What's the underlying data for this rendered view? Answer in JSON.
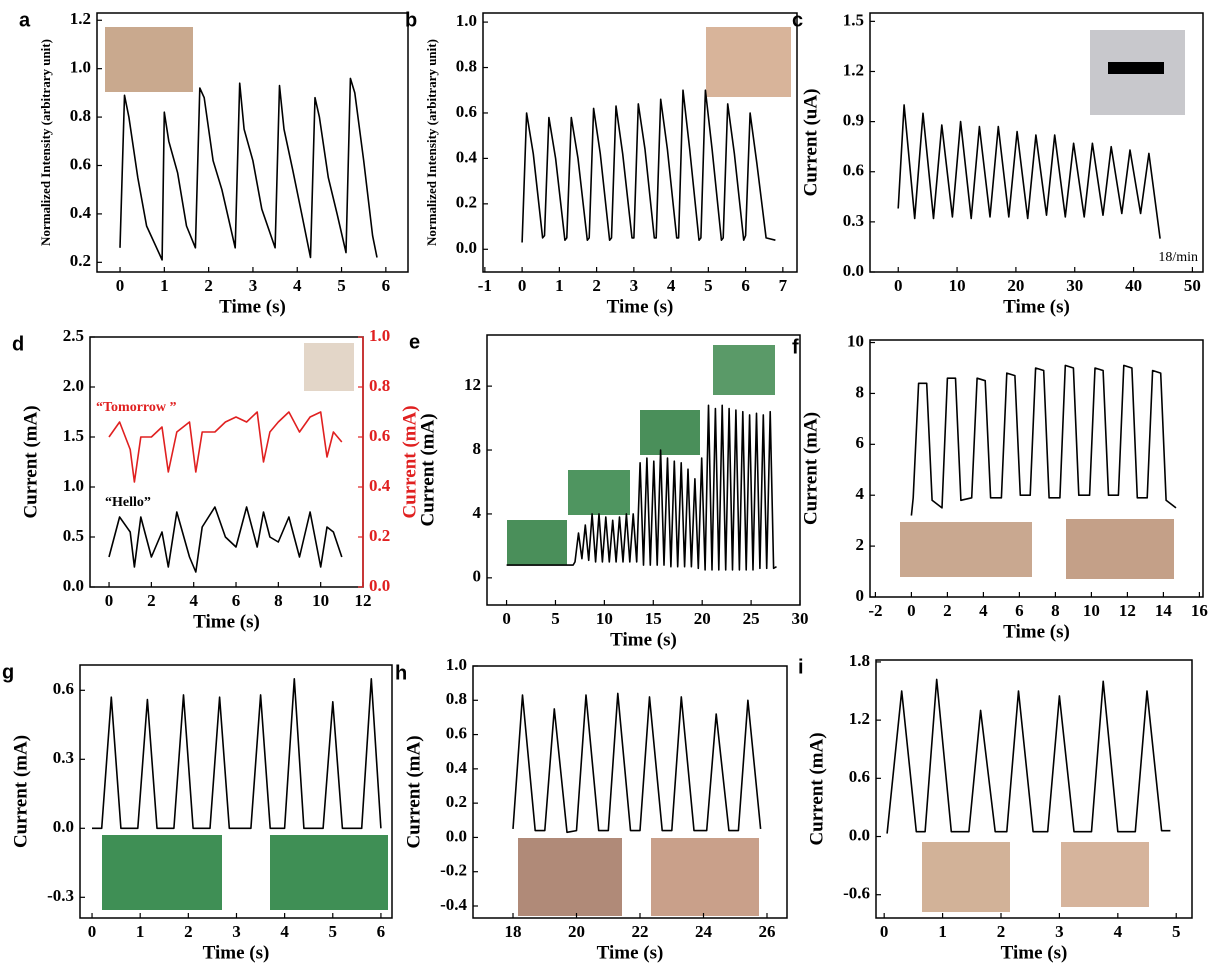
{
  "chart_data": [
    {
      "type": "line",
      "panel": "a",
      "xlabel": "Time (s)",
      "ylabel": "Normalized Intensity (arbitrary unit)",
      "xlim": [
        -0.52,
        6.5
      ],
      "ylim": [
        0.16,
        1.23
      ],
      "xticks": [
        0,
        1,
        2,
        3,
        4,
        5,
        6
      ],
      "yticks": [
        0.2,
        0.4,
        0.6,
        0.8,
        {
          "value": 1.0,
          "label": "1.0"
        },
        1.2
      ],
      "x": [
        0,
        0.1,
        0.2,
        0.4,
        0.6,
        0.8,
        0.95,
        1.0,
        1.1,
        1.3,
        1.5,
        1.7,
        1.8,
        1.9,
        2.1,
        2.3,
        2.6,
        2.7,
        2.8,
        3.0,
        3.2,
        3.5,
        3.6,
        3.7,
        3.9,
        4.1,
        4.3,
        4.4,
        4.5,
        4.7,
        4.9,
        5.1,
        5.2,
        5.3,
        5.5,
        5.7,
        5.8
      ],
      "series": [
        {
          "color": "#000000",
          "values": [
            0.26,
            0.89,
            0.8,
            0.55,
            0.35,
            0.27,
            0.21,
            0.82,
            0.7,
            0.57,
            0.35,
            0.26,
            0.92,
            0.88,
            0.62,
            0.5,
            0.26,
            0.94,
            0.75,
            0.62,
            0.42,
            0.26,
            0.93,
            0.75,
            0.58,
            0.4,
            0.22,
            0.88,
            0.8,
            0.55,
            0.4,
            0.24,
            0.96,
            0.9,
            0.62,
            0.31,
            0.22
          ]
        }
      ]
    },
    {
      "type": "line",
      "panel": "b",
      "xlabel": "Time (s)",
      "ylabel": "Normalized Intensity (arbitrary unit)",
      "xlim": [
        -1.05,
        7.38
      ],
      "ylim": [
        -0.1,
        1.04
      ],
      "xticks": [
        -1,
        0,
        1,
        2,
        3,
        4,
        5,
        6,
        7
      ],
      "yticks": [
        {
          "value": 0,
          "label": "0.0"
        },
        0.2,
        0.4,
        0.6,
        0.8,
        {
          "value": 1.0,
          "label": "1.0"
        }
      ],
      "x": [
        0,
        0.12,
        0.3,
        0.55,
        0.6,
        0.72,
        0.9,
        1.15,
        1.2,
        1.32,
        1.5,
        1.75,
        1.8,
        1.92,
        2.1,
        2.35,
        2.4,
        2.52,
        2.7,
        2.95,
        3.0,
        3.12,
        3.3,
        3.55,
        3.6,
        3.72,
        3.9,
        4.15,
        4.2,
        4.32,
        4.5,
        4.75,
        4.8,
        4.92,
        5.1,
        5.35,
        5.4,
        5.52,
        5.7,
        5.95,
        6.0,
        6.12,
        6.3,
        6.55,
        6.8
      ],
      "series": [
        {
          "color": "#000000",
          "values": [
            0.03,
            0.6,
            0.42,
            0.05,
            0.06,
            0.58,
            0.4,
            0.04,
            0.05,
            0.58,
            0.4,
            0.04,
            0.05,
            0.62,
            0.42,
            0.04,
            0.05,
            0.63,
            0.42,
            0.05,
            0.05,
            0.64,
            0.44,
            0.05,
            0.05,
            0.66,
            0.44,
            0.05,
            0.05,
            0.7,
            0.44,
            0.04,
            0.05,
            0.7,
            0.44,
            0.04,
            0.05,
            0.64,
            0.42,
            0.04,
            0.06,
            0.6,
            0.38,
            0.05,
            0.04
          ]
        }
      ]
    },
    {
      "type": "line",
      "panel": "c",
      "xlabel": "Time (s)",
      "ylabel": "Current (uA)",
      "annotation": "18/min",
      "xlim": [
        -4.8,
        51.8
      ],
      "ylim": [
        0,
        1.55
      ],
      "xticks": [
        0,
        10,
        20,
        30,
        40,
        50
      ],
      "yticks": [
        {
          "value": 0,
          "label": "0.0"
        },
        0.3,
        0.6,
        0.9,
        1.2,
        1.5
      ],
      "x": [
        0,
        1,
        2.8,
        4.2,
        6,
        7.4,
        9.2,
        10.6,
        12.4,
        13.8,
        15.6,
        17,
        18.8,
        20.2,
        22,
        23.4,
        25.2,
        26.6,
        28.4,
        29.8,
        31.6,
        33,
        34.8,
        36.2,
        38,
        39.4,
        41.2,
        42.6,
        44.5
      ],
      "series": [
        {
          "color": "#000000",
          "values": [
            0.38,
            1.0,
            0.32,
            0.95,
            0.32,
            0.88,
            0.33,
            0.9,
            0.32,
            0.87,
            0.33,
            0.87,
            0.33,
            0.84,
            0.32,
            0.82,
            0.34,
            0.82,
            0.33,
            0.77,
            0.33,
            0.77,
            0.34,
            0.75,
            0.35,
            0.73,
            0.35,
            0.71,
            0.2
          ]
        }
      ]
    },
    {
      "type": "line",
      "panel": "d",
      "xlabel": "Time (s)",
      "ylabel": "Current (mA)",
      "y2label": "Current (mA)",
      "xlim": [
        -0.9,
        12.0
      ],
      "ylim": [
        0,
        2.5
      ],
      "y2lim": [
        0,
        1.0
      ],
      "xticks": [
        0,
        2,
        4,
        6,
        8,
        10,
        12
      ],
      "yticks": [
        {
          "value": 0,
          "label": "0.0"
        },
        0.5,
        {
          "value": 1.0,
          "label": "1.0"
        },
        1.5,
        {
          "value": 2.0,
          "label": "2.0"
        },
        2.5
      ],
      "y2ticks": [
        {
          "value": 0,
          "label": "0.0"
        },
        0.2,
        0.4,
        0.6,
        0.8,
        {
          "value": 1.0,
          "label": "1.0"
        }
      ],
      "x": [
        0,
        0.5,
        1,
        1.2,
        1.5,
        2,
        2.5,
        2.8,
        3.2,
        3.8,
        4.1,
        4.4,
        5,
        5.5,
        6,
        6.5,
        7,
        7.3,
        7.6,
        8,
        8.5,
        9,
        9.5,
        10,
        10.3,
        10.6,
        11
      ],
      "series": [
        {
          "name": "“Tomorrow ”",
          "color": "#e02020",
          "axis": "y2",
          "values": [
            0.6,
            0.66,
            0.55,
            0.42,
            0.6,
            0.6,
            0.64,
            0.46,
            0.62,
            0.66,
            0.46,
            0.62,
            0.62,
            0.66,
            0.68,
            0.66,
            0.7,
            0.5,
            0.62,
            0.66,
            0.7,
            0.62,
            0.68,
            0.7,
            0.52,
            0.62,
            0.58
          ]
        },
        {
          "name": "“Hello”",
          "color": "#000000",
          "values": [
            0.3,
            0.7,
            0.55,
            0.2,
            0.7,
            0.3,
            0.55,
            0.2,
            0.75,
            0.3,
            0.15,
            0.6,
            0.8,
            0.5,
            0.4,
            0.8,
            0.4,
            0.75,
            0.5,
            0.45,
            0.7,
            0.3,
            0.75,
            0.2,
            0.6,
            0.55,
            0.3
          ]
        }
      ]
    },
    {
      "type": "line",
      "panel": "e",
      "xlabel": "Time (s)",
      "ylabel": "Current (mA)",
      "xlim": [
        -2,
        30
      ],
      "ylim": [
        -1.7,
        15.2
      ],
      "xticks": [
        0,
        5,
        10,
        15,
        20,
        25,
        30
      ],
      "yticks": [
        0,
        4,
        8,
        12
      ],
      "x": [
        0,
        6.8,
        7.0,
        7.35,
        7.7,
        8.05,
        8.4,
        8.75,
        9.1,
        9.45,
        9.8,
        10.15,
        10.5,
        10.85,
        11.2,
        11.55,
        11.9,
        12.25,
        12.6,
        12.95,
        13.3,
        13.65,
        14.0,
        14.35,
        14.7,
        15.05,
        15.4,
        15.75,
        16.1,
        16.45,
        16.8,
        17.15,
        17.5,
        17.85,
        18.2,
        18.55,
        18.9,
        19.25,
        19.6,
        19.95,
        20.3,
        20.65,
        21.0,
        21.35,
        21.7,
        22.05,
        22.4,
        22.75,
        23.1,
        23.45,
        23.8,
        24.15,
        24.5,
        24.85,
        25.2,
        25.55,
        25.9,
        26.25,
        26.6,
        26.95,
        27.3,
        27.6
      ],
      "series": [
        {
          "color": "#000000",
          "values": [
            0.8,
            0.8,
            1.0,
            2.8,
            1.2,
            3.3,
            1.1,
            4.0,
            1.0,
            4.0,
            1.0,
            3.8,
            1.0,
            3.6,
            1.0,
            3.8,
            1.0,
            4.0,
            1.0,
            4.0,
            1.0,
            7.2,
            0.8,
            7.5,
            0.8,
            7.3,
            0.8,
            8.0,
            0.8,
            7.5,
            0.7,
            7.3,
            0.7,
            7.2,
            0.7,
            6.8,
            0.7,
            6.2,
            0.6,
            7.5,
            0.5,
            10.8,
            0.5,
            10.6,
            0.5,
            10.8,
            0.5,
            10.6,
            0.5,
            10.5,
            0.5,
            10.4,
            0.5,
            10.2,
            0.5,
            10.3,
            0.6,
            10.2,
            0.6,
            10.4,
            0.6,
            0.7
          ]
        }
      ]
    },
    {
      "type": "line",
      "panel": "f",
      "xlabel": "Time (s)",
      "ylabel": "Current (mA)",
      "xlim": [
        -2.3,
        16.2
      ],
      "ylim": [
        0,
        10.1
      ],
      "xticks": [
        -2,
        0,
        2,
        4,
        6,
        8,
        10,
        12,
        14,
        16
      ],
      "yticks": [
        0,
        2,
        4,
        6,
        8,
        10
      ],
      "x": [
        0,
        0.1,
        0.4,
        0.85,
        1.15,
        1.7,
        2.0,
        2.45,
        2.75,
        3.35,
        3.65,
        4.1,
        4.4,
        5.0,
        5.3,
        5.75,
        6.05,
        6.6,
        6.9,
        7.35,
        7.65,
        8.25,
        8.55,
        9.0,
        9.3,
        9.9,
        10.2,
        10.65,
        10.95,
        11.5,
        11.8,
        12.25,
        12.55,
        13.1,
        13.4,
        13.85,
        14.15,
        14.7
      ],
      "series": [
        {
          "color": "#000000",
          "values": [
            3.2,
            3.9,
            8.4,
            8.4,
            3.8,
            3.5,
            8.6,
            8.6,
            3.8,
            3.9,
            8.6,
            8.5,
            3.9,
            3.9,
            8.8,
            8.7,
            4.0,
            4.0,
            9.0,
            8.9,
            3.9,
            3.9,
            9.1,
            9.0,
            4.0,
            4.0,
            9.0,
            8.9,
            4.0,
            4.0,
            9.1,
            9.0,
            3.9,
            3.9,
            8.9,
            8.8,
            3.8,
            3.5
          ]
        }
      ]
    },
    {
      "type": "line",
      "panel": "g",
      "xlabel": "Time (s)",
      "ylabel": "Current (mA)",
      "xlim": [
        -0.25,
        6.23
      ],
      "ylim": [
        -0.39,
        0.71
      ],
      "xticks": [
        0,
        1,
        2,
        3,
        4,
        5,
        6
      ],
      "yticks": [
        -0.3,
        {
          "value": 0,
          "label": "0.0"
        },
        0.3,
        0.6
      ],
      "x": [
        0.0,
        0.2,
        0.4,
        0.6,
        0.95,
        1.15,
        1.35,
        1.7,
        1.9,
        2.1,
        2.45,
        2.65,
        2.85,
        3.3,
        3.5,
        3.7,
        4.0,
        4.2,
        4.4,
        4.8,
        5.0,
        5.2,
        5.6,
        5.8,
        6.0
      ],
      "series": [
        {
          "color": "#000000",
          "values": [
            0,
            0,
            0.57,
            0,
            0,
            0.56,
            0,
            0,
            0.58,
            0,
            0,
            0.57,
            0,
            0,
            0.58,
            0,
            0,
            0.65,
            0,
            0,
            0.55,
            0,
            0,
            0.65,
            0
          ]
        }
      ]
    },
    {
      "type": "line",
      "panel": "h",
      "xlabel": "Time (s)",
      "ylabel": "Current (mA)",
      "xlim": [
        16.74,
        26.63
      ],
      "ylim": [
        -0.47,
        1.0
      ],
      "xticks": [
        18,
        20,
        22,
        24,
        26
      ],
      "yticks": [
        -0.4,
        -0.2,
        {
          "value": 0,
          "label": "0.0"
        },
        0.2,
        0.4,
        0.6,
        0.8,
        {
          "value": 1.0,
          "label": "1.0"
        }
      ],
      "x": [
        18.0,
        18.3,
        18.7,
        19.0,
        19.3,
        19.7,
        20.0,
        20.3,
        20.7,
        21.0,
        21.3,
        21.7,
        22.0,
        22.3,
        22.7,
        23.0,
        23.3,
        23.7,
        24.1,
        24.4,
        24.8,
        25.1,
        25.4,
        25.8
      ],
      "series": [
        {
          "color": "#000000",
          "values": [
            0.05,
            0.83,
            0.04,
            0.04,
            0.75,
            0.03,
            0.04,
            0.83,
            0.04,
            0.04,
            0.84,
            0.04,
            0.04,
            0.82,
            0.04,
            0.04,
            0.82,
            0.04,
            0.04,
            0.72,
            0.04,
            0.04,
            0.8,
            0.05
          ]
        }
      ]
    },
    {
      "type": "line",
      "panel": "i",
      "xlabel": "Time (s)",
      "ylabel": "Current (mA)",
      "xlim": [
        -0.14,
        5.27
      ],
      "ylim": [
        -0.84,
        1.82
      ],
      "xticks": [
        0,
        1,
        2,
        3,
        4,
        5
      ],
      "yticks": [
        -0.6,
        {
          "value": 0,
          "label": "0.0"
        },
        0.6,
        1.2,
        1.8
      ],
      "x": [
        0.05,
        0.3,
        0.55,
        0.7,
        0.9,
        1.15,
        1.45,
        1.65,
        1.9,
        2.1,
        2.3,
        2.55,
        2.8,
        3.0,
        3.25,
        3.55,
        3.75,
        4.0,
        4.3,
        4.5,
        4.75,
        4.9
      ],
      "series": [
        {
          "color": "#000000",
          "values": [
            0.03,
            1.5,
            0.05,
            0.05,
            1.62,
            0.05,
            0.05,
            1.3,
            0.05,
            0.05,
            1.5,
            0.05,
            0.05,
            1.45,
            0.05,
            0.05,
            1.6,
            0.05,
            0.05,
            1.5,
            0.06,
            0.06
          ]
        }
      ]
    }
  ]
}
